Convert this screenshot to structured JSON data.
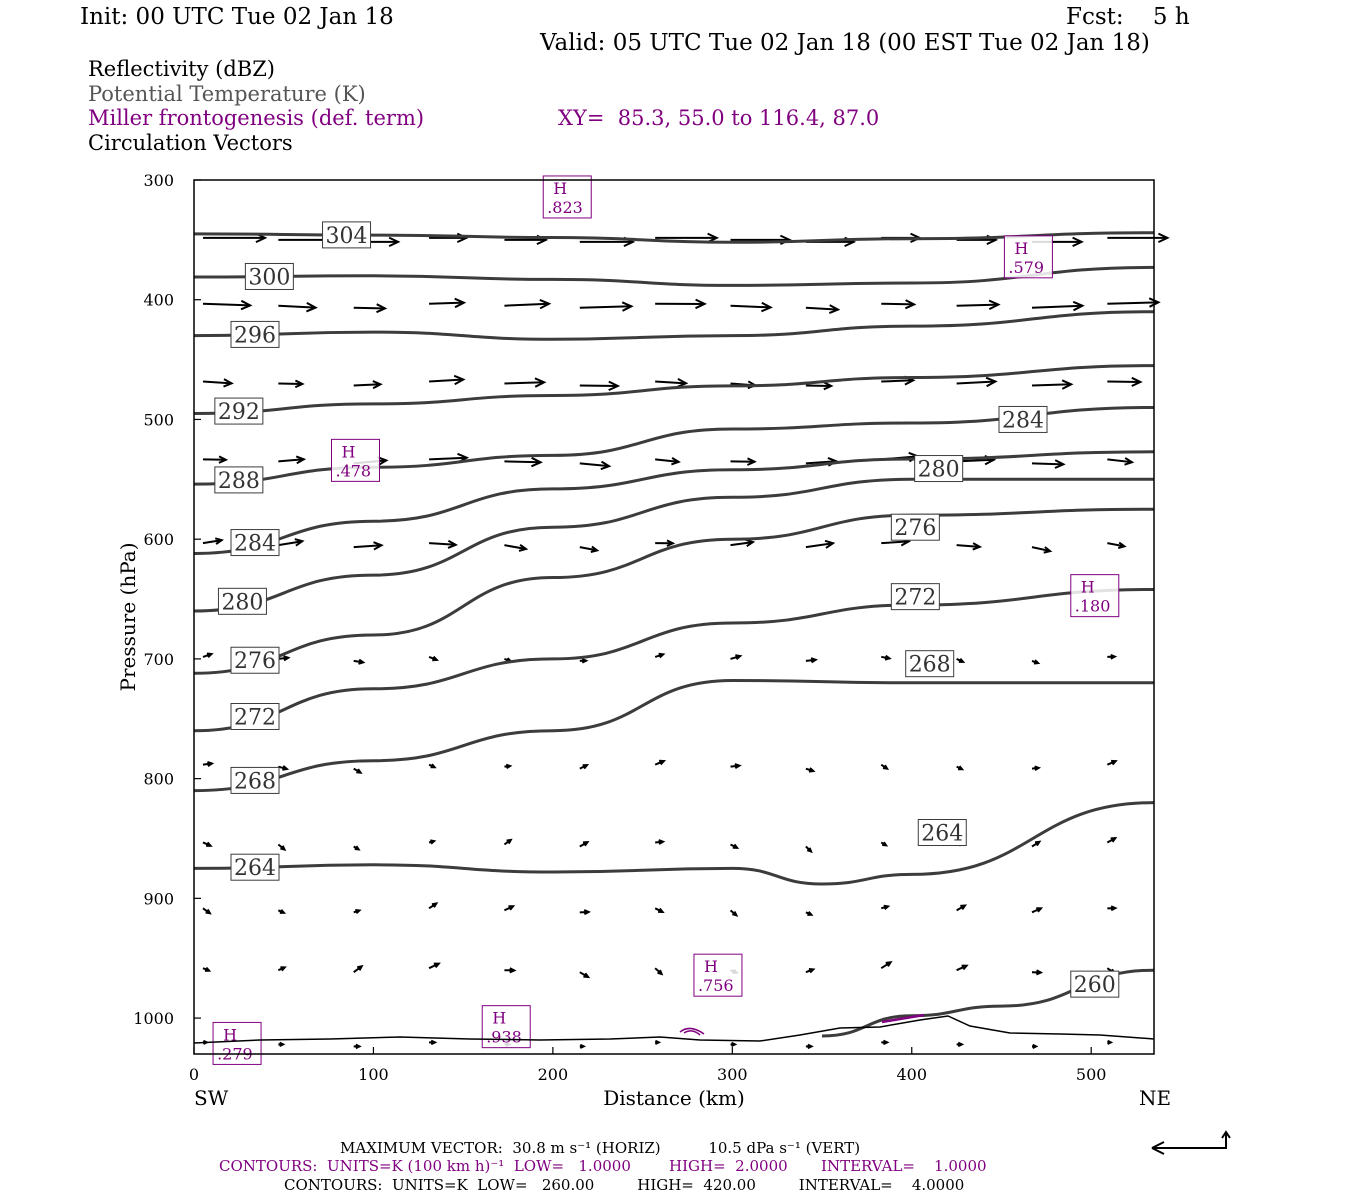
{
  "header": {
    "init": "Init: 00 UTC Tue 02 Jan 18",
    "fcst": "Fcst:    5 h",
    "valid": "Valid: 05 UTC Tue 02 Jan 18 (00 EST Tue 02 Jan 18)"
  },
  "legend": {
    "reflectivity": "Reflectivity (dBZ)",
    "theta": "Potential Temperature (K)",
    "frontogenesis": "Miller frontogenesis (def. term)",
    "xy": "XY=  85.3, 55.0 to 116.4, 87.0",
    "vectors": "Circulation Vectors"
  },
  "footer": {
    "max_vector": "MAXIMUM VECTOR:  30.8 m s⁻¹ (HORIZ)          10.5 dPa s⁻¹ (VERT)",
    "contours_front": "CONTOURS:  UNITS=K (100 km h)⁻¹  LOW=   1.0000        HIGH=  2.0000       INTERVAL=    1.0000",
    "contours_theta": "CONTOURS:  UNITS=K  LOW=   260.00         HIGH=  420.00         INTERVAL=    4.0000"
  },
  "colors": {
    "theta": "#3c3c3c",
    "frontogenesis": "#800080",
    "vectors": "#000000"
  },
  "icons": {
    "reference_vector": "reference-vector-arrow-icon"
  },
  "chart_data": {
    "type": "cross-section",
    "xlabel": "Distance (km)",
    "ylabel": "Pressure (hPa)",
    "xlim": [
      0,
      535
    ],
    "ylim": [
      1030,
      300
    ],
    "x_ticks": [
      0,
      100,
      200,
      300,
      400,
      500
    ],
    "y_ticks": [
      300,
      400,
      500,
      600,
      700,
      800,
      900,
      1000
    ],
    "end_labels": [
      "SW",
      "NE"
    ],
    "theta_isentropes": [
      {
        "k": 304,
        "points": [
          [
            0,
            345
          ],
          [
            100,
            346
          ],
          [
            200,
            348
          ],
          [
            300,
            352
          ],
          [
            400,
            349
          ],
          [
            535,
            344
          ]
        ]
      },
      {
        "k": 300,
        "points": [
          [
            0,
            381
          ],
          [
            100,
            380
          ],
          [
            200,
            383
          ],
          [
            300,
            388
          ],
          [
            400,
            386
          ],
          [
            535,
            373
          ]
        ]
      },
      {
        "k": 296,
        "points": [
          [
            0,
            430
          ],
          [
            100,
            427
          ],
          [
            200,
            433
          ],
          [
            300,
            430
          ],
          [
            400,
            422
          ],
          [
            535,
            410
          ]
        ]
      },
      {
        "k": 292,
        "points": [
          [
            0,
            495
          ],
          [
            100,
            487
          ],
          [
            200,
            480
          ],
          [
            300,
            472
          ],
          [
            400,
            465
          ],
          [
            535,
            455
          ]
        ]
      },
      {
        "k": 288,
        "points": [
          [
            0,
            554
          ],
          [
            100,
            540
          ],
          [
            200,
            530
          ],
          [
            300,
            508
          ],
          [
            400,
            503
          ],
          [
            535,
            490
          ]
        ]
      },
      {
        "k": 284,
        "points": [
          [
            0,
            612
          ],
          [
            100,
            585
          ],
          [
            200,
            558
          ],
          [
            300,
            542
          ],
          [
            400,
            533
          ],
          [
            535,
            527
          ]
        ]
      },
      {
        "k": 280,
        "points": [
          [
            0,
            660
          ],
          [
            100,
            630
          ],
          [
            200,
            590
          ],
          [
            300,
            565
          ],
          [
            400,
            550
          ],
          [
            535,
            550
          ]
        ]
      },
      {
        "k": 276,
        "points": [
          [
            0,
            712
          ],
          [
            100,
            680
          ],
          [
            200,
            632
          ],
          [
            300,
            600
          ],
          [
            400,
            580
          ],
          [
            535,
            575
          ]
        ]
      },
      {
        "k": 272,
        "points": [
          [
            0,
            760
          ],
          [
            100,
            725
          ],
          [
            200,
            700
          ],
          [
            300,
            670
          ],
          [
            400,
            655
          ],
          [
            535,
            642
          ]
        ]
      },
      {
        "k": 268,
        "points": [
          [
            0,
            810
          ],
          [
            100,
            785
          ],
          [
            200,
            760
          ],
          [
            300,
            718
          ],
          [
            400,
            720
          ],
          [
            535,
            720
          ]
        ]
      },
      {
        "k": 264,
        "points": [
          [
            0,
            875
          ],
          [
            100,
            872
          ],
          [
            200,
            878
          ],
          [
            300,
            875
          ],
          [
            350,
            888
          ],
          [
            400,
            880
          ],
          [
            535,
            820
          ]
        ]
      },
      {
        "k": 260,
        "points": [
          [
            350,
            1015
          ],
          [
            400,
            998
          ],
          [
            450,
            990
          ],
          [
            535,
            960
          ]
        ]
      }
    ],
    "frontogenesis_maxima": [
      {
        "label": "H",
        "value": ".823",
        "x": 208,
        "p": 315
      },
      {
        "label": "H",
        "value": ".579",
        "x": 465,
        "p": 365
      },
      {
        "label": "H",
        "value": ".478",
        "x": 90,
        "p": 535
      },
      {
        "label": "H",
        "value": ".180",
        "x": 502,
        "p": 648
      },
      {
        "label": "H",
        "value": ".756",
        "x": 292,
        "p": 965
      },
      {
        "label": "H",
        "value": ".938",
        "x": 174,
        "p": 1008
      },
      {
        "label": "H",
        "value": ".279",
        "x": 24,
        "p": 1022
      }
    ],
    "grid": false
  }
}
